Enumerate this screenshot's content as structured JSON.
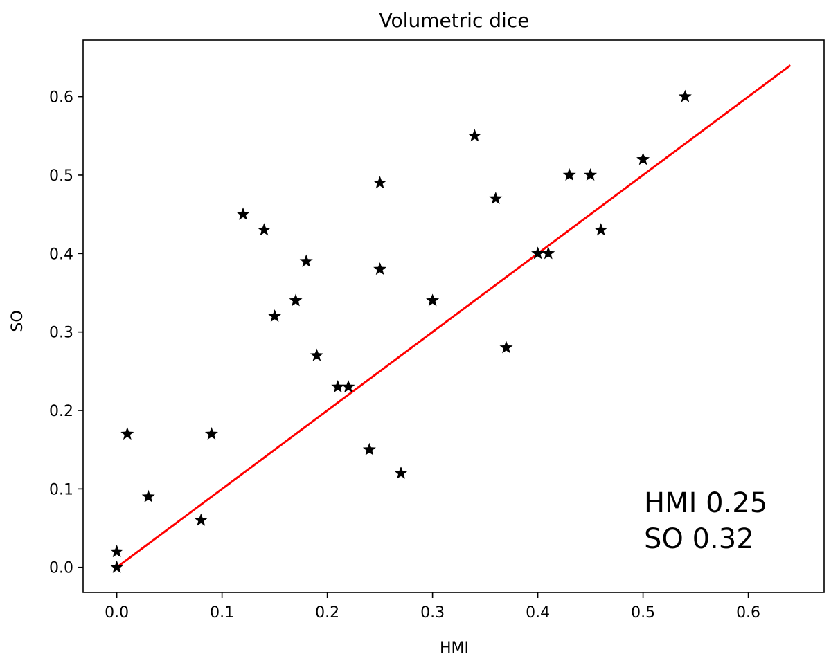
{
  "chart_data": {
    "type": "scatter",
    "title": "Volumetric dice",
    "xlabel": "HMI",
    "ylabel": "SO",
    "xlim": [
      -0.032,
      0.672
    ],
    "ylim": [
      -0.032,
      0.672
    ],
    "xticks": [
      0.0,
      0.1,
      0.2,
      0.3,
      0.4,
      0.5,
      0.6
    ],
    "yticks": [
      0.0,
      0.1,
      0.2,
      0.3,
      0.4,
      0.5,
      0.6
    ],
    "tick_labels": [
      "0.0",
      "0.1",
      "0.2",
      "0.3",
      "0.4",
      "0.5",
      "0.6"
    ],
    "grid": false,
    "marker": "star",
    "marker_color": "#000000",
    "points": {
      "x": [
        0.0,
        0.0,
        0.01,
        0.03,
        0.08,
        0.09,
        0.12,
        0.14,
        0.15,
        0.17,
        0.18,
        0.19,
        0.21,
        0.22,
        0.24,
        0.25,
        0.25,
        0.27,
        0.3,
        0.34,
        0.36,
        0.37,
        0.4,
        0.41,
        0.43,
        0.45,
        0.46,
        0.5,
        0.54
      ],
      "y": [
        0.0,
        0.02,
        0.17,
        0.09,
        0.06,
        0.17,
        0.45,
        0.43,
        0.32,
        0.34,
        0.39,
        0.27,
        0.23,
        0.23,
        0.15,
        0.49,
        0.38,
        0.12,
        0.34,
        0.55,
        0.47,
        0.28,
        0.4,
        0.4,
        0.5,
        0.5,
        0.43,
        0.52,
        0.6
      ]
    },
    "reference_line": {
      "x": [
        0.0,
        0.64
      ],
      "y": [
        0.0,
        0.64
      ],
      "color": "#ff0000"
    },
    "annotations": [
      "HMI 0.25",
      "SO 0.32"
    ]
  }
}
